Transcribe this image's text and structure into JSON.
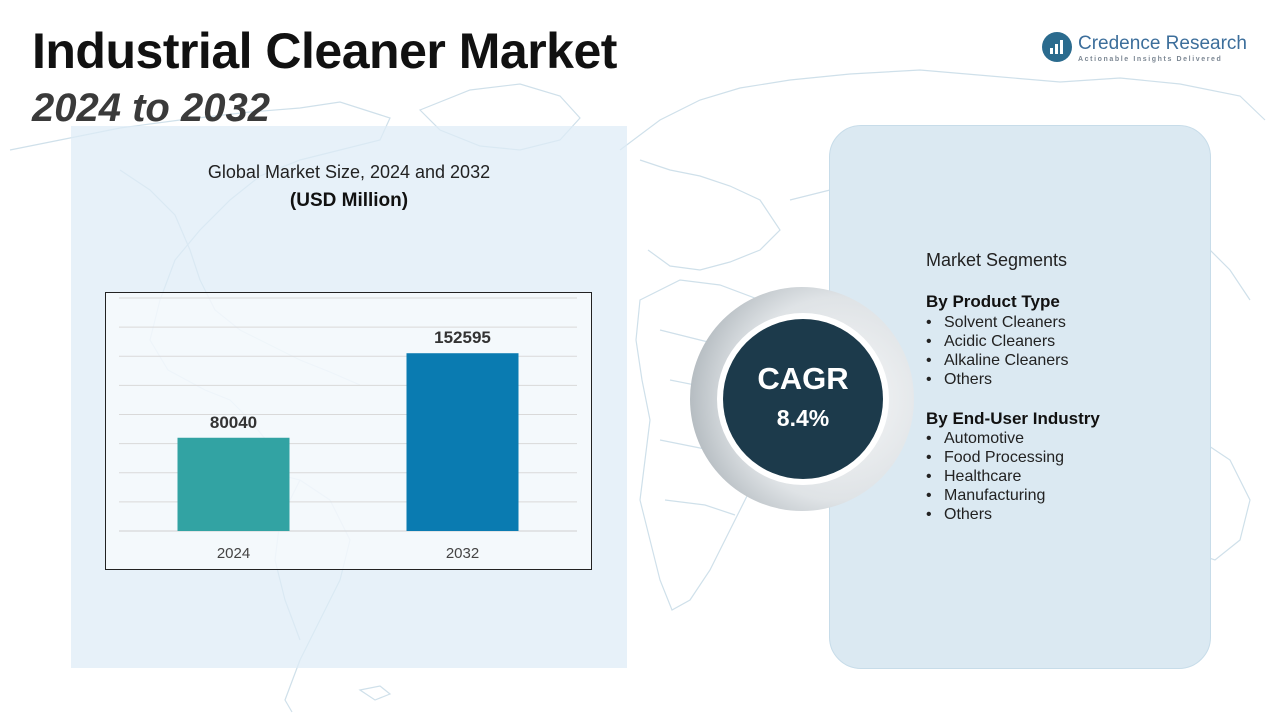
{
  "header": {
    "title": "Industrial Cleaner Market",
    "subtitle": "2024 to 2032"
  },
  "logo": {
    "name": "Credence Research",
    "tagline": "Actionable Insights Delivered",
    "icon": "bar-chart-icon",
    "color": "#3c6e9b"
  },
  "chart_data": {
    "type": "bar",
    "title": "Global Market Size, 2024 and 2032",
    "units": "(USD Million)",
    "categories": [
      "2024",
      "2032"
    ],
    "values": [
      80040,
      152595
    ],
    "colors": [
      "#32a3a3",
      "#0a7bb1"
    ],
    "ylim": [
      0,
      200000
    ],
    "grid": true,
    "xlabel": "",
    "ylabel": ""
  },
  "cagr": {
    "label": "CAGR",
    "value": "8.4%"
  },
  "segments": {
    "heading": "Market Segments",
    "groups": [
      {
        "title": "By Product Type",
        "items": [
          "Solvent Cleaners",
          "Acidic Cleaners",
          "Alkaline Cleaners",
          "Others"
        ]
      },
      {
        "title": "By End-User Industry",
        "items": [
          "Automotive",
          "Food Processing",
          "Healthcare",
          "Manufacturing",
          "Others"
        ]
      }
    ]
  }
}
